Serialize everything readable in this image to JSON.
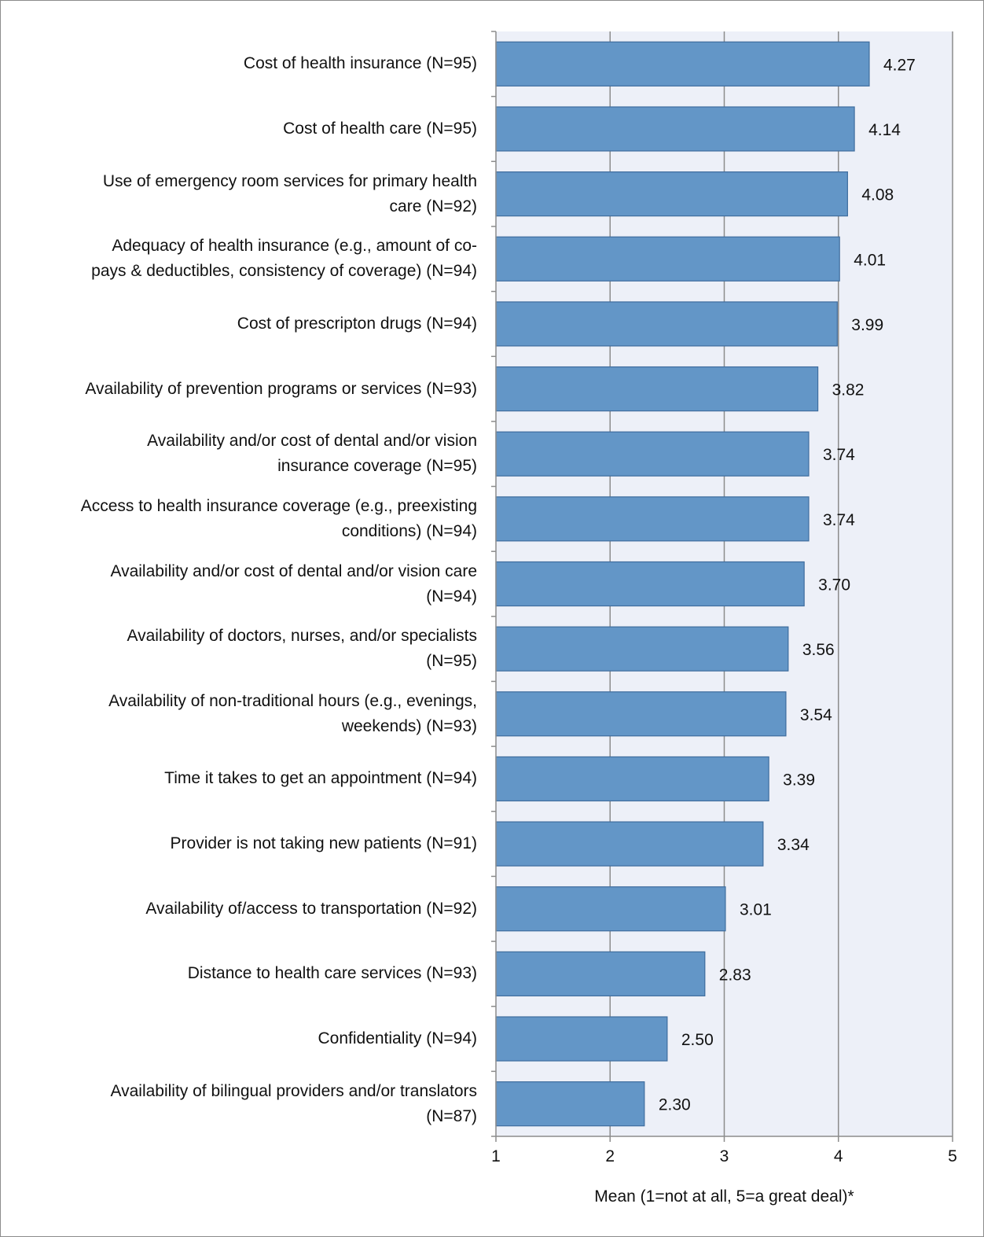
{
  "chart_data": {
    "type": "bar",
    "orientation": "horizontal",
    "xlabel": "Mean (1=not at all, 5=a great deal)*",
    "xlim": [
      1,
      5
    ],
    "xticks": [
      "1",
      "2",
      "3",
      "4",
      "5"
    ],
    "grid": true,
    "categories": [
      "Cost of health insurance (N=95)",
      "Cost of health care (N=95)",
      "Use of emergency room services for primary health care (N=92)",
      "Adequacy of health insurance (e.g., amount of co-pays & deductibles, consistency of coverage) (N=94)",
      "Cost of prescripton drugs (N=94)",
      "Availability of prevention programs or services (N=93)",
      "Availability and/or cost of dental and/or vision insurance coverage (N=95)",
      "Access to health insurance coverage (e.g., preexisting conditions) (N=94)",
      "Availability and/or cost of dental and/or vision care (N=94)",
      "Availability of doctors, nurses, and/or specialists (N=95)",
      "Availability of non-traditional hours (e.g., evenings, weekends) (N=93)",
      "Time it takes to get an appointment (N=94)",
      "Provider is not taking new patients (N=91)",
      "Availability of/access to transportation (N=92)",
      "Distance to health care services (N=93)",
      "Confidentiality (N=94)",
      "Availability of bilingual providers and/or translators (N=87)"
    ],
    "category_lines": [
      [
        "Cost of health insurance (N=95)"
      ],
      [
        "Cost of health care (N=95)"
      ],
      [
        "Use of emergency room services for primary health",
        "care (N=92)"
      ],
      [
        "Adequacy of health insurance (e.g., amount of co-",
        "pays & deductibles, consistency of coverage) (N=94)"
      ],
      [
        "Cost of prescripton drugs (N=94)"
      ],
      [
        "Availability of prevention programs or services (N=93)"
      ],
      [
        "Availability and/or cost of dental and/or vision",
        "insurance coverage (N=95)"
      ],
      [
        "Access to health insurance coverage (e.g., preexisting",
        "conditions) (N=94)"
      ],
      [
        "Availability and/or cost of dental and/or vision care",
        "(N=94)"
      ],
      [
        "Availability of doctors, nurses, and/or specialists",
        "(N=95)"
      ],
      [
        "Availability of non-traditional hours (e.g., evenings,",
        "weekends) (N=93)"
      ],
      [
        "Time it takes to get an appointment (N=94)"
      ],
      [
        "Provider is not taking new patients (N=91)"
      ],
      [
        "Availability of/access to transportation (N=92)"
      ],
      [
        "Distance to health care services (N=93)"
      ],
      [
        "Confidentiality (N=94)"
      ],
      [
        "Availability of bilingual providers and/or translators",
        "(N=87)"
      ]
    ],
    "values": [
      4.27,
      4.14,
      4.08,
      4.01,
      3.99,
      3.82,
      3.74,
      3.74,
      3.7,
      3.56,
      3.54,
      3.39,
      3.34,
      3.01,
      2.83,
      2.5,
      2.3
    ],
    "value_labels": [
      "4.27",
      "4.14",
      "4.08",
      "4.01",
      "3.99",
      "3.82",
      "3.74",
      "3.74",
      "3.70",
      "3.56",
      "3.54",
      "3.39",
      "3.34",
      "3.01",
      "2.83",
      "2.50",
      "2.30"
    ],
    "colors": {
      "bar_fill": "#6396c7",
      "bar_stroke": "#3f6d9e",
      "plot_background": "#edf0f8",
      "gridline": "#8c8c8c",
      "axis": "#8c8c8c",
      "text": "#111111"
    }
  }
}
